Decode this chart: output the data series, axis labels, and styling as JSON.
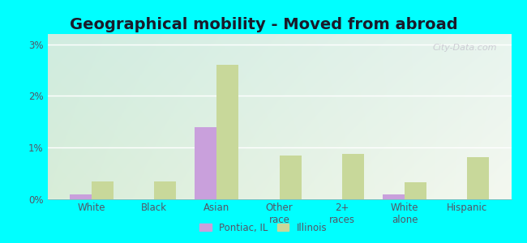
{
  "title": "Geographical mobility - Moved from abroad",
  "categories": [
    "White",
    "Black",
    "Asian",
    "Other\nrace",
    "2+\nraces",
    "White\nalone",
    "Hispanic"
  ],
  "pontiac_values": [
    0.1,
    0.0,
    1.4,
    0.0,
    0.0,
    0.1,
    0.0
  ],
  "illinois_values": [
    0.35,
    0.35,
    2.6,
    0.85,
    0.88,
    0.33,
    0.82
  ],
  "pontiac_color": "#c9a0dc",
  "illinois_color": "#c8d89a",
  "bg_color_topleft": "#d0ece0",
  "bg_color_topright": "#e8f4ee",
  "bg_color_bottomleft": "#d8edd8",
  "bg_color_bottomright": "#f4f8f0",
  "bar_width": 0.35,
  "ylim": [
    0,
    3.2
  ],
  "yticks": [
    0,
    1,
    2,
    3
  ],
  "ytick_labels": [
    "0%",
    "1%",
    "2%",
    "3%"
  ],
  "legend_labels": [
    "Pontiac, IL",
    "Illinois"
  ],
  "title_fontsize": 14,
  "label_fontsize": 8.5,
  "tick_fontsize": 8.5,
  "figure_bg": "#00ffff",
  "text_color": "#555566",
  "watermark": "City-Data.com",
  "watermark_color": "#c8c8d0"
}
